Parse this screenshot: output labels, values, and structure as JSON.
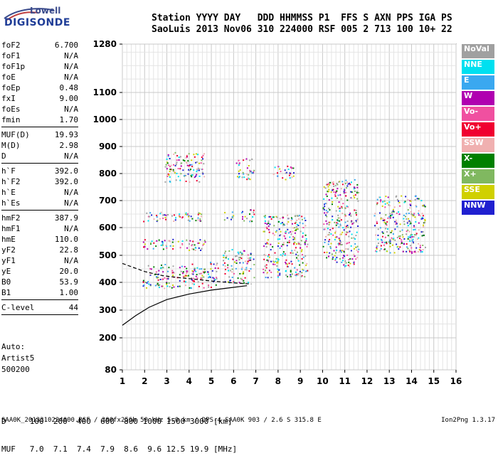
{
  "logo": {
    "brand_line1": "Lowell",
    "brand_line2": "DIGISONDE"
  },
  "header": {
    "labels": "Station YYYY DAY   DDD HHMMSS P1  FFS S AXN PPS IGA PS",
    "values": "SaoLuis 2013 Nov06 310 224000 RSF 005 2 713 100 10+ 22"
  },
  "params_group1": [
    {
      "name": "foF2",
      "value": "6.700"
    },
    {
      "name": "foF1",
      "value": "N/A"
    },
    {
      "name": "foF1p",
      "value": "N/A"
    },
    {
      "name": "foE",
      "value": "N/A"
    },
    {
      "name": "foEp",
      "value": "0.48"
    },
    {
      "name": "fxI",
      "value": "9.00"
    },
    {
      "name": "foEs",
      "value": "N/A"
    },
    {
      "name": "fmin",
      "value": "1.70"
    }
  ],
  "params_group2": [
    {
      "name": "MUF(D)",
      "value": "19.93"
    },
    {
      "name": "M(D)",
      "value": "2.98"
    },
    {
      "name": "D",
      "value": "N/A"
    }
  ],
  "params_group3": [
    {
      "name": "h`F",
      "value": "392.0"
    },
    {
      "name": "h`F2",
      "value": "392.0"
    },
    {
      "name": "h`E",
      "value": "N/A"
    },
    {
      "name": "h`Es",
      "value": "N/A"
    }
  ],
  "params_group4": [
    {
      "name": "hmF2",
      "value": "387.9"
    },
    {
      "name": "hmF1",
      "value": "N/A"
    },
    {
      "name": "hmE",
      "value": "110.0"
    },
    {
      "name": "yF2",
      "value": "22.8"
    },
    {
      "name": "yF1",
      "value": "N/A"
    },
    {
      "name": "yE",
      "value": "20.0"
    },
    {
      "name": "B0",
      "value": "53.9"
    },
    {
      "name": "B1",
      "value": "1.00"
    }
  ],
  "params_group5": [
    {
      "name": "C-level",
      "value": "44"
    }
  ],
  "auto": {
    "line1": "Auto:",
    "line2": "Artist5",
    "line3": "500200"
  },
  "legend": [
    {
      "label": "NoVal",
      "color": "#a0a0a0"
    },
    {
      "label": "NNE",
      "color": "#00e0f0"
    },
    {
      "label": "E",
      "color": "#3aa8f0"
    },
    {
      "label": "W",
      "color": "#b000b0"
    },
    {
      "label": "Vo-",
      "color": "#f050a0"
    },
    {
      "label": "Vo+",
      "color": "#f00030"
    },
    {
      "label": "SSW",
      "color": "#f0b0b0"
    },
    {
      "label": "X-",
      "color": "#008000"
    },
    {
      "label": "X+",
      "color": "#80b860"
    },
    {
      "label": "SSE",
      "color": "#d0d000"
    },
    {
      "label": "NNW",
      "color": "#2020d0"
    }
  ],
  "chart_data": {
    "type": "scatter",
    "x_ticks": [
      1,
      2,
      3,
      4,
      5,
      6,
      7,
      8,
      9,
      10,
      11,
      12,
      13,
      14,
      15,
      16
    ],
    "y_ticks": [
      80,
      200,
      300,
      400,
      500,
      600,
      700,
      800,
      900,
      1000,
      1100,
      1280
    ],
    "xlim": [
      1,
      16
    ],
    "ylim": [
      80,
      1280
    ],
    "grid": true,
    "echo_clusters": [
      {
        "f_min": 1.9,
        "f_max": 4.7,
        "h_min": 380,
        "h_max": 470
      },
      {
        "f_min": 1.9,
        "f_max": 4.7,
        "h_min": 520,
        "h_max": 560
      },
      {
        "f_min": 1.9,
        "f_max": 4.7,
        "h_min": 625,
        "h_max": 660
      },
      {
        "f_min": 2.9,
        "f_max": 4.7,
        "h_min": 770,
        "h_max": 880
      },
      {
        "f_min": 4.8,
        "f_max": 5.3,
        "h_min": 380,
        "h_max": 480
      },
      {
        "f_min": 5.5,
        "f_max": 6.0,
        "h_min": 400,
        "h_max": 530
      },
      {
        "f_min": 5.5,
        "f_max": 6.0,
        "h_min": 630,
        "h_max": 660
      },
      {
        "f_min": 6.0,
        "f_max": 6.9,
        "h_min": 400,
        "h_max": 520
      },
      {
        "f_min": 6.1,
        "f_max": 6.9,
        "h_min": 780,
        "h_max": 860
      },
      {
        "f_min": 6.3,
        "f_max": 6.9,
        "h_min": 620,
        "h_max": 670
      },
      {
        "f_min": 7.3,
        "f_max": 9.3,
        "h_min": 420,
        "h_max": 650
      },
      {
        "f_min": 7.7,
        "f_max": 8.7,
        "h_min": 780,
        "h_max": 830
      },
      {
        "f_min": 10.0,
        "f_max": 11.6,
        "h_min": 460,
        "h_max": 780
      },
      {
        "f_min": 12.3,
        "f_max": 14.6,
        "h_min": 510,
        "h_max": 720
      }
    ],
    "trace_upper": [
      [
        1.0,
        470
      ],
      [
        2.0,
        440
      ],
      [
        2.8,
        425
      ],
      [
        3.5,
        418
      ],
      [
        4.2,
        412
      ],
      [
        5.0,
        405
      ],
      [
        6.0,
        398
      ],
      [
        6.8,
        394
      ]
    ],
    "trace_lower": [
      [
        1.0,
        245
      ],
      [
        1.6,
        280
      ],
      [
        2.2,
        310
      ],
      [
        3.0,
        338
      ],
      [
        4.0,
        358
      ],
      [
        5.0,
        372
      ],
      [
        6.0,
        382
      ],
      [
        6.6,
        388
      ]
    ]
  },
  "bottom_table": {
    "row1": "D     100  200  400  600  800 1000 1500 3000 [km]",
    "row2": "MUF   7.0  7.1  7.4  7.9  8.6  9.6 12.5 19.9 [MHz]"
  },
  "footer": {
    "left": "SAA0K_2013310224000.RSF / 300fx256h 50 kHz 5.0 km / DPS-4 SAA0K 903 / 2.6 S 315.8 E",
    "right": "Ion2Png 1.3.17"
  }
}
